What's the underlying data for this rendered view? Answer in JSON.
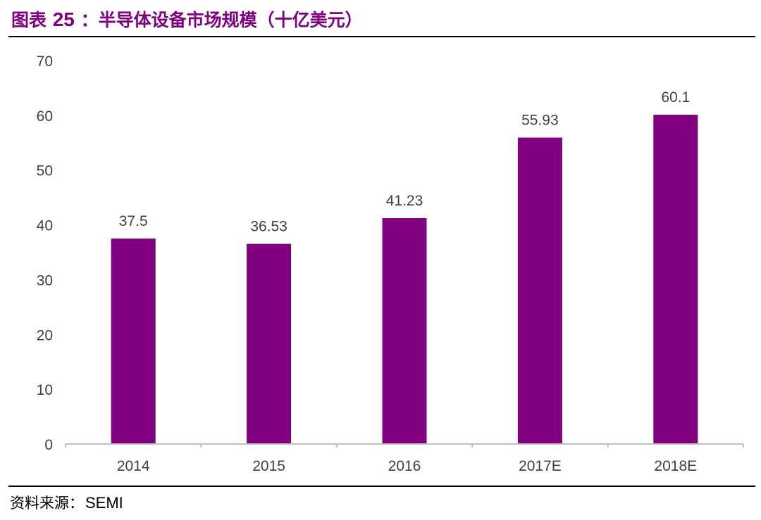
{
  "header": {
    "title_prefix": "图表",
    "title_number": "25",
    "title_text": "：半导体设备市场规模（十亿美元）"
  },
  "footer": {
    "source_label": "资料来源：",
    "source_value": "SEMI"
  },
  "colors": {
    "accent": "#7f0080",
    "bar": "#800080",
    "axis": "#bfbfbf",
    "label": "#404040"
  },
  "chart_data": {
    "type": "bar",
    "title": "",
    "xlabel": "",
    "ylabel": "",
    "categories": [
      "2014",
      "2015",
      "2016",
      "2017E",
      "2018E"
    ],
    "values": [
      37.5,
      36.53,
      41.23,
      55.93,
      60.1
    ],
    "value_labels": [
      "37.5",
      "36.53",
      "41.23",
      "55.93",
      "60.1"
    ],
    "ylim": [
      0,
      70
    ],
    "yticks": [
      0,
      10,
      20,
      30,
      40,
      50,
      60,
      70
    ],
    "grid": false,
    "legend": "none"
  }
}
